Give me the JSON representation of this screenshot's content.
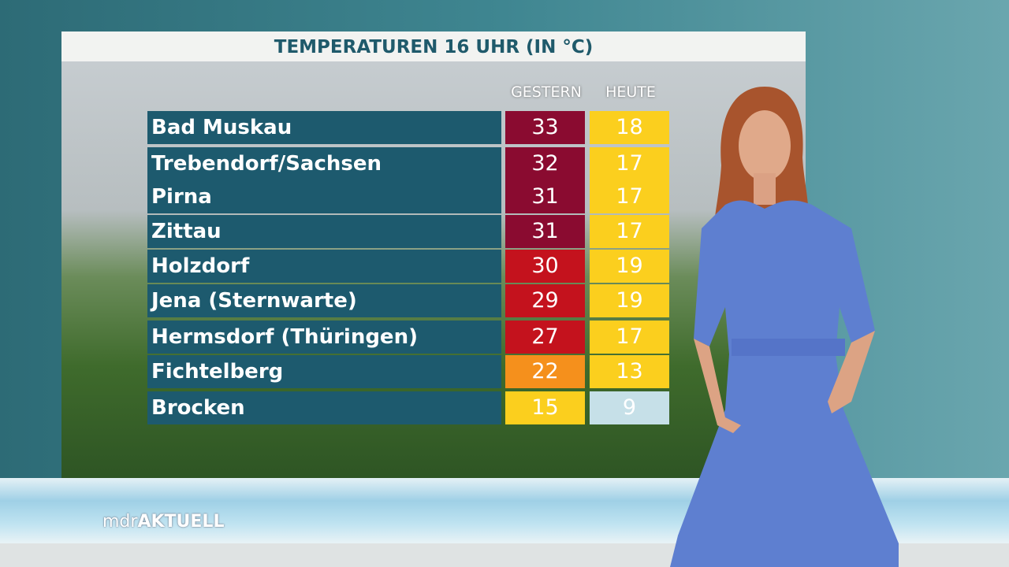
{
  "header": {
    "title": "TEMPERATUREN 16 UHR (IN °C)"
  },
  "table": {
    "columns": [
      "GESTERN",
      "HEUTE"
    ],
    "rows": [
      {
        "name": "Bad Muskau",
        "gestern": 33,
        "heute": 18,
        "gestern_color": "#8a0b30",
        "heute_color": "#fbcf1e"
      },
      {
        "name": "Trebendorf/Sachsen",
        "gestern": 32,
        "heute": 17,
        "gestern_color": "#8a0b30",
        "heute_color": "#fbcf1e"
      },
      {
        "name": "Pirna",
        "gestern": 31,
        "heute": 17,
        "gestern_color": "#8a0b30",
        "heute_color": "#fbcf1e"
      },
      {
        "name": "Zittau",
        "gestern": 31,
        "heute": 17,
        "gestern_color": "#8a0b30",
        "heute_color": "#fbcf1e"
      },
      {
        "name": "Holzdorf",
        "gestern": 30,
        "heute": 19,
        "gestern_color": "#c4121d",
        "heute_color": "#fbcf1e"
      },
      {
        "name": "Jena (Sternwarte)",
        "gestern": 29,
        "heute": 19,
        "gestern_color": "#c4121d",
        "heute_color": "#fbcf1e"
      },
      {
        "name": "Hermsdorf (Thüringen)",
        "gestern": 27,
        "heute": 17,
        "gestern_color": "#c4121d",
        "heute_color": "#fbcf1e"
      },
      {
        "name": "Fichtelberg",
        "gestern": 22,
        "heute": 13,
        "gestern_color": "#f5901c",
        "heute_color": "#fbcf1e"
      },
      {
        "name": "Brocken",
        "gestern": 15,
        "heute": 9,
        "gestern_color": "#fbcf1e",
        "heute_color": "#c6e0e8"
      }
    ]
  },
  "branding": {
    "prefix": "mdr",
    "name": "AKTUELL"
  }
}
